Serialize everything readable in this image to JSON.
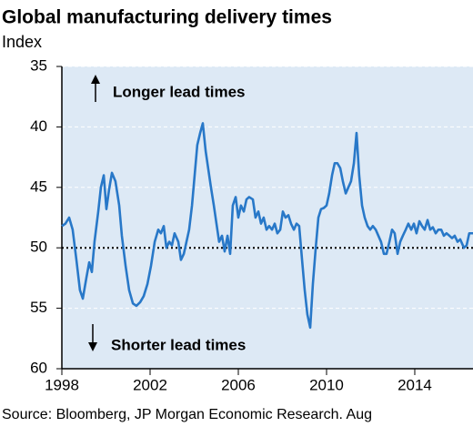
{
  "chart_data": {
    "type": "line",
    "title": "Global manufacturing delivery times",
    "subtitle": "Index",
    "source": "Source: Bloomberg, JP Morgan Economic Research. Aug",
    "annotations": [
      "Longer lead times",
      "Shorter lead times"
    ],
    "color": "#2878c8",
    "background": "#dde9f5",
    "grid": true,
    "y_inverted": true,
    "reference_line": 50,
    "xlim": [
      1998,
      2016.64
    ],
    "ylim": [
      35,
      60
    ],
    "xticks": [
      1998,
      2002,
      2006,
      2010,
      2014
    ],
    "yticks": [
      35,
      40,
      45,
      50,
      55,
      60
    ],
    "x": [
      1998.0,
      1998.16,
      1998.33,
      1998.49,
      1998.66,
      1998.82,
      1998.95,
      1999.11,
      1999.24,
      1999.36,
      1999.48,
      1999.65,
      1999.77,
      1999.9,
      2000.02,
      2000.14,
      2000.27,
      2000.43,
      2000.6,
      2000.72,
      2000.89,
      2001.05,
      2001.22,
      2001.38,
      2001.55,
      2001.71,
      2001.88,
      2002.04,
      2002.21,
      2002.37,
      2002.49,
      2002.62,
      2002.74,
      2002.87,
      2002.99,
      2003.11,
      2003.28,
      2003.4,
      2003.53,
      2003.65,
      2003.77,
      2003.9,
      2004.02,
      2004.14,
      2004.27,
      2004.39,
      2004.52,
      2004.64,
      2004.76,
      2004.89,
      2005.01,
      2005.13,
      2005.26,
      2005.38,
      2005.51,
      2005.63,
      2005.75,
      2005.88,
      2006.0,
      2006.12,
      2006.25,
      2006.37,
      2006.49,
      2006.66,
      2006.78,
      2006.91,
      2007.03,
      2007.15,
      2007.28,
      2007.4,
      2007.53,
      2007.65,
      2007.77,
      2007.9,
      2008.02,
      2008.14,
      2008.27,
      2008.39,
      2008.52,
      2008.64,
      2008.76,
      2008.89,
      2009.01,
      2009.13,
      2009.26,
      2009.38,
      2009.51,
      2009.63,
      2009.75,
      2009.88,
      2010.0,
      2010.12,
      2010.25,
      2010.37,
      2010.49,
      2010.62,
      2010.74,
      2010.87,
      2010.99,
      2011.11,
      2011.24,
      2011.36,
      2011.48,
      2011.61,
      2011.73,
      2011.86,
      2011.98,
      2012.1,
      2012.23,
      2012.35,
      2012.47,
      2012.6,
      2012.72,
      2012.85,
      2012.97,
      2013.09,
      2013.22,
      2013.34,
      2013.46,
      2013.59,
      2013.71,
      2013.84,
      2013.96,
      2014.08,
      2014.21,
      2014.33,
      2014.45,
      2014.58,
      2014.7,
      2014.82,
      2014.95,
      2015.07,
      2015.2,
      2015.32,
      2015.44,
      2015.57,
      2015.69,
      2015.81,
      2015.94,
      2016.06,
      2016.23,
      2016.35,
      2016.47,
      2016.64
    ],
    "values": [
      48.2,
      48.0,
      47.5,
      48.5,
      51,
      53.5,
      54.2,
      52.5,
      51.2,
      52,
      49.5,
      47,
      45,
      44,
      46.8,
      45.2,
      43.8,
      44.5,
      46.5,
      49,
      51.5,
      53.5,
      54.6,
      54.8,
      54.5,
      54,
      53,
      51.5,
      49.5,
      48.5,
      48.8,
      48.2,
      50,
      49.5,
      49.8,
      48.8,
      49.5,
      51,
      50.5,
      49.5,
      48.5,
      46.5,
      44,
      41.5,
      40.5,
      39.7,
      42,
      43.5,
      45,
      46.5,
      48,
      49.5,
      49,
      50.3,
      49,
      50.5,
      46.5,
      45.8,
      47.5,
      46.5,
      47,
      46,
      45.8,
      46,
      47.5,
      47,
      48,
      47.5,
      48.5,
      48.2,
      48.5,
      48,
      48.8,
      48.5,
      47,
      47.5,
      47.3,
      48,
      48.5,
      48,
      48.2,
      51,
      53.5,
      55.5,
      56.6,
      53,
      50,
      47.5,
      46.8,
      46.7,
      46.5,
      45.5,
      44,
      43,
      43,
      43.4,
      44.5,
      45.5,
      45,
      44.5,
      43,
      40.5,
      44,
      46.5,
      47.5,
      48.2,
      48.5,
      48.2,
      48.5,
      49,
      49.5,
      50.5,
      50.5,
      49.5,
      48.5,
      48.8,
      50.5,
      49.5,
      49,
      48.5,
      48,
      48.5,
      48,
      48.8,
      47.8,
      48.2,
      48.5,
      47.7,
      48.5,
      48.3,
      48.8,
      48.5,
      48.5,
      49,
      48.8,
      49,
      49.2,
      49,
      49.5,
      49.3,
      50,
      49.8,
      48.8,
      48.8
    ]
  }
}
